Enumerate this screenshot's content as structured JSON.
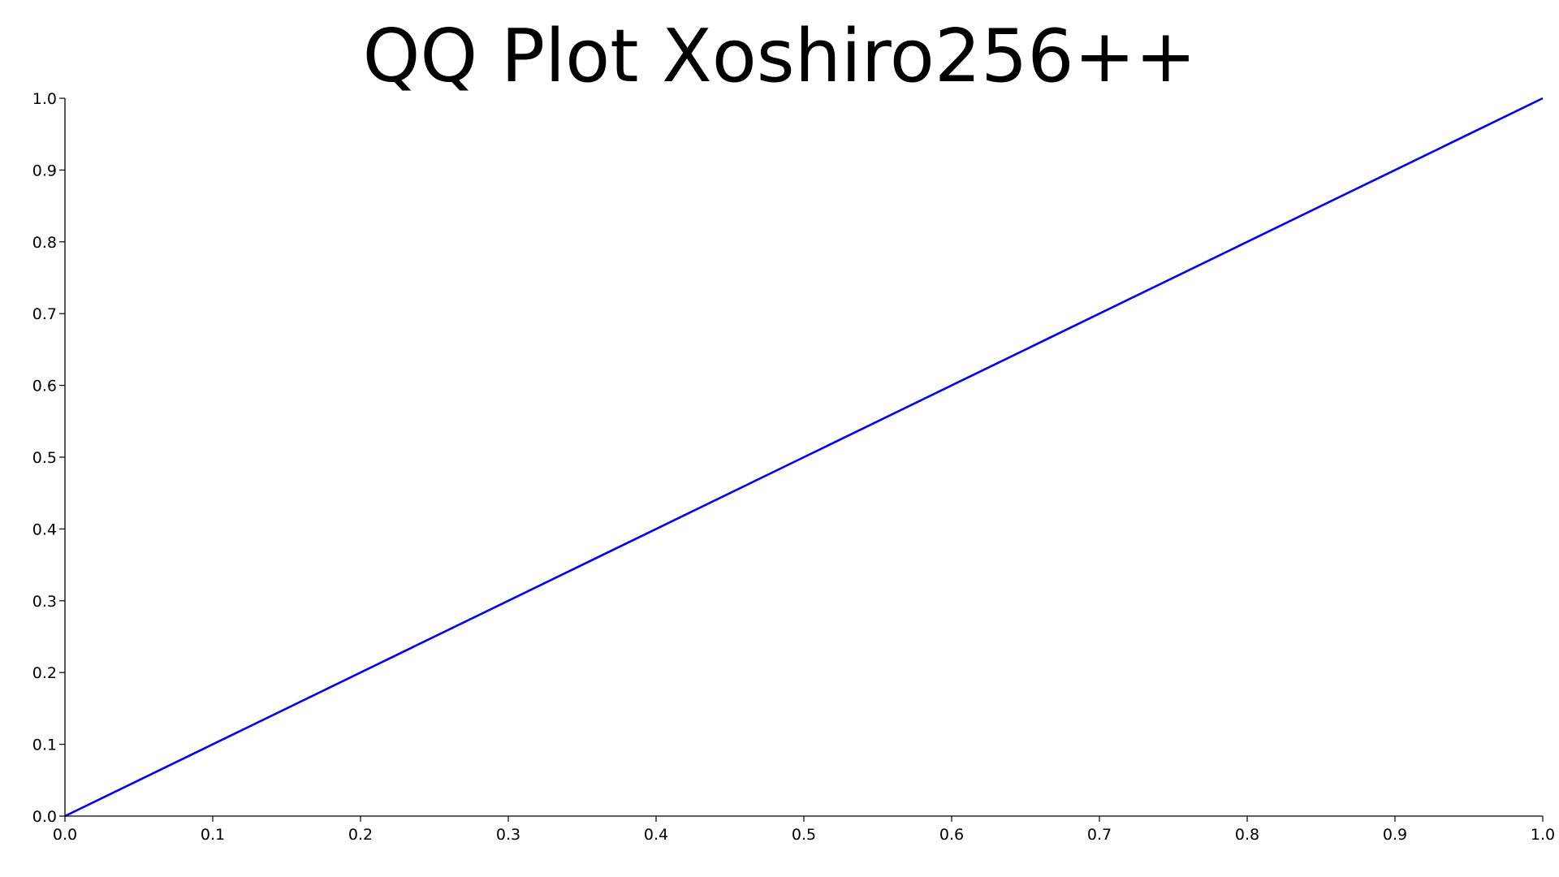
{
  "chart_data": {
    "type": "line",
    "title": "QQ Plot Xoshiro256++",
    "xlabel": "",
    "ylabel": "",
    "xlim": [
      0.0,
      1.0
    ],
    "ylim": [
      0.0,
      1.0
    ],
    "grid": false,
    "x_ticks": [
      "0.0",
      "0.1",
      "0.2",
      "0.3",
      "0.4",
      "0.5",
      "0.6",
      "0.7",
      "0.8",
      "0.9",
      "1.0"
    ],
    "y_ticks": [
      "0.0",
      "0.1",
      "0.2",
      "0.3",
      "0.4",
      "0.5",
      "0.6",
      "0.7",
      "0.8",
      "0.9",
      "1.0"
    ],
    "series": [
      {
        "color": "#0000ff",
        "x": [
          0.0,
          0.1,
          0.2,
          0.3,
          0.4,
          0.5,
          0.6,
          0.7,
          0.8,
          0.9,
          1.0
        ],
        "y": [
          0.0,
          0.1,
          0.2,
          0.3,
          0.4,
          0.5,
          0.6,
          0.7,
          0.8,
          0.9,
          1.0
        ]
      }
    ],
    "axis_color": "#000000"
  }
}
